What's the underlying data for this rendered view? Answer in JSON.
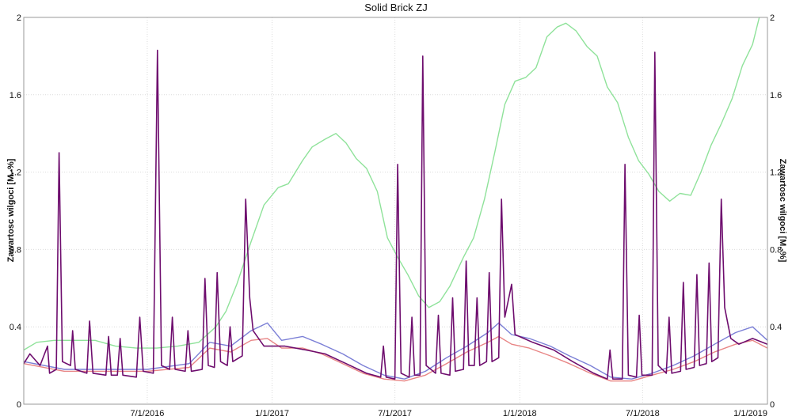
{
  "chart_data": {
    "type": "line",
    "title": "Solid Brick ZJ",
    "ylabel_left": "Zawartosc wilgoci [M.-%]",
    "ylabel_right": "Zawartosc wilgoci [M.-%]",
    "ylim": [
      0,
      2
    ],
    "yticks": [
      0,
      0.4,
      0.8,
      1.2,
      1.6,
      2
    ],
    "yticklabels": [
      "0",
      "0.4",
      "0.8",
      "1.2",
      "1.6",
      "2"
    ],
    "xlim": [
      "2016-01-01",
      "2019-01-01"
    ],
    "xticks": [
      "2016-07-01",
      "2017-01-01",
      "2017-07-01",
      "2018-01-01",
      "2018-07-01",
      "2019-01-01"
    ],
    "xticklabels": [
      "7/1/2016",
      "1/1/2017",
      "7/1/2017",
      "1/1/2018",
      "7/1/2018",
      "1/1/2019"
    ],
    "grid": true,
    "colors": {
      "green": "#8fe29a",
      "blue": "#7b7fd6",
      "red": "#e88585",
      "purple": "#6e0d6e"
    },
    "series": [
      {
        "color": "green",
        "points": [
          [
            "2016-01-01",
            0.28
          ],
          [
            "2016-01-20",
            0.32
          ],
          [
            "2016-02-15",
            0.33
          ],
          [
            "2016-03-15",
            0.33
          ],
          [
            "2016-04-15",
            0.33
          ],
          [
            "2016-05-15",
            0.3
          ],
          [
            "2016-06-15",
            0.29
          ],
          [
            "2016-07-15",
            0.29
          ],
          [
            "2016-08-15",
            0.3
          ],
          [
            "2016-09-15",
            0.32
          ],
          [
            "2016-10-10",
            0.4
          ],
          [
            "2016-10-25",
            0.48
          ],
          [
            "2016-11-10",
            0.62
          ],
          [
            "2016-12-01",
            0.84
          ],
          [
            "2016-12-20",
            1.03
          ],
          [
            "2017-01-10",
            1.12
          ],
          [
            "2017-01-25",
            1.14
          ],
          [
            "2017-02-15",
            1.26
          ],
          [
            "2017-03-01",
            1.33
          ],
          [
            "2017-03-20",
            1.37
          ],
          [
            "2017-04-05",
            1.4
          ],
          [
            "2017-04-20",
            1.35
          ],
          [
            "2017-05-05",
            1.27
          ],
          [
            "2017-05-20",
            1.22
          ],
          [
            "2017-06-05",
            1.1
          ],
          [
            "2017-06-20",
            0.86
          ],
          [
            "2017-07-05",
            0.76
          ],
          [
            "2017-07-20",
            0.67
          ],
          [
            "2017-08-05",
            0.56
          ],
          [
            "2017-08-20",
            0.5
          ],
          [
            "2017-09-05",
            0.53
          ],
          [
            "2017-09-20",
            0.61
          ],
          [
            "2017-10-10",
            0.76
          ],
          [
            "2017-10-25",
            0.86
          ],
          [
            "2017-11-10",
            1.06
          ],
          [
            "2017-11-25",
            1.3
          ],
          [
            "2017-12-10",
            1.55
          ],
          [
            "2017-12-25",
            1.67
          ],
          [
            "2018-01-10",
            1.69
          ],
          [
            "2018-01-25",
            1.74
          ],
          [
            "2018-02-10",
            1.9
          ],
          [
            "2018-02-25",
            1.95
          ],
          [
            "2018-03-10",
            1.97
          ],
          [
            "2018-03-25",
            1.93
          ],
          [
            "2018-04-10",
            1.85
          ],
          [
            "2018-04-25",
            1.8
          ],
          [
            "2018-05-10",
            1.64
          ],
          [
            "2018-05-25",
            1.56
          ],
          [
            "2018-06-10",
            1.38
          ],
          [
            "2018-06-25",
            1.26
          ],
          [
            "2018-07-10",
            1.19
          ],
          [
            "2018-07-25",
            1.1
          ],
          [
            "2018-08-10",
            1.05
          ],
          [
            "2018-08-25",
            1.09
          ],
          [
            "2018-09-10",
            1.08
          ],
          [
            "2018-09-25",
            1.2
          ],
          [
            "2018-10-10",
            1.34
          ],
          [
            "2018-10-25",
            1.45
          ],
          [
            "2018-11-10",
            1.58
          ],
          [
            "2018-11-25",
            1.75
          ],
          [
            "2018-12-10",
            1.86
          ],
          [
            "2018-12-20",
            2.0
          ]
        ]
      },
      {
        "color": "blue",
        "points": [
          [
            "2016-01-01",
            0.22
          ],
          [
            "2016-03-01",
            0.18
          ],
          [
            "2016-05-01",
            0.18
          ],
          [
            "2016-07-01",
            0.18
          ],
          [
            "2016-09-01",
            0.21
          ],
          [
            "2016-10-01",
            0.32
          ],
          [
            "2016-11-01",
            0.3
          ],
          [
            "2016-12-01",
            0.38
          ],
          [
            "2016-12-25",
            0.42
          ],
          [
            "2017-01-15",
            0.33
          ],
          [
            "2017-02-15",
            0.35
          ],
          [
            "2017-03-15",
            0.31
          ],
          [
            "2017-04-15",
            0.26
          ],
          [
            "2017-05-15",
            0.2
          ],
          [
            "2017-06-15",
            0.15
          ],
          [
            "2017-07-15",
            0.13
          ],
          [
            "2017-08-15",
            0.17
          ],
          [
            "2017-09-15",
            0.24
          ],
          [
            "2017-10-15",
            0.3
          ],
          [
            "2017-11-15",
            0.37
          ],
          [
            "2017-12-01",
            0.42
          ],
          [
            "2017-12-20",
            0.36
          ],
          [
            "2018-01-15",
            0.34
          ],
          [
            "2018-02-15",
            0.3
          ],
          [
            "2018-03-15",
            0.25
          ],
          [
            "2018-04-15",
            0.2
          ],
          [
            "2018-05-15",
            0.14
          ],
          [
            "2018-06-15",
            0.13
          ],
          [
            "2018-07-15",
            0.16
          ],
          [
            "2018-08-15",
            0.2
          ],
          [
            "2018-09-15",
            0.25
          ],
          [
            "2018-10-15",
            0.31
          ],
          [
            "2018-11-15",
            0.37
          ],
          [
            "2018-12-10",
            0.4
          ],
          [
            "2019-01-01",
            0.33
          ]
        ]
      },
      {
        "color": "red",
        "points": [
          [
            "2016-01-01",
            0.21
          ],
          [
            "2016-03-01",
            0.17
          ],
          [
            "2016-05-01",
            0.17
          ],
          [
            "2016-07-01",
            0.17
          ],
          [
            "2016-09-01",
            0.19
          ],
          [
            "2016-10-01",
            0.29
          ],
          [
            "2016-11-01",
            0.27
          ],
          [
            "2016-12-01",
            0.33
          ],
          [
            "2016-12-25",
            0.34
          ],
          [
            "2017-01-15",
            0.29
          ],
          [
            "2017-02-15",
            0.29
          ],
          [
            "2017-03-15",
            0.26
          ],
          [
            "2017-04-15",
            0.21
          ],
          [
            "2017-05-15",
            0.16
          ],
          [
            "2017-06-15",
            0.13
          ],
          [
            "2017-07-15",
            0.12
          ],
          [
            "2017-08-15",
            0.15
          ],
          [
            "2017-09-15",
            0.21
          ],
          [
            "2017-10-15",
            0.27
          ],
          [
            "2017-11-15",
            0.32
          ],
          [
            "2017-12-01",
            0.35
          ],
          [
            "2017-12-20",
            0.31
          ],
          [
            "2018-01-15",
            0.29
          ],
          [
            "2018-02-15",
            0.25
          ],
          [
            "2018-03-15",
            0.21
          ],
          [
            "2018-04-15",
            0.16
          ],
          [
            "2018-05-15",
            0.12
          ],
          [
            "2018-06-15",
            0.12
          ],
          [
            "2018-07-15",
            0.15
          ],
          [
            "2018-08-15",
            0.18
          ],
          [
            "2018-09-15",
            0.22
          ],
          [
            "2018-10-15",
            0.27
          ],
          [
            "2018-11-15",
            0.31
          ],
          [
            "2018-12-10",
            0.33
          ],
          [
            "2019-01-01",
            0.29
          ]
        ]
      },
      {
        "color": "purple",
        "points": [
          [
            "2016-01-01",
            0.21
          ],
          [
            "2016-01-10",
            0.26
          ],
          [
            "2016-01-25",
            0.2
          ],
          [
            "2016-02-05",
            0.3
          ],
          [
            "2016-02-08",
            0.16
          ],
          [
            "2016-02-18",
            0.18
          ],
          [
            "2016-02-22",
            1.3
          ],
          [
            "2016-02-27",
            0.22
          ],
          [
            "2016-03-10",
            0.2
          ],
          [
            "2016-03-13",
            0.38
          ],
          [
            "2016-03-17",
            0.18
          ],
          [
            "2016-04-03",
            0.16
          ],
          [
            "2016-04-07",
            0.43
          ],
          [
            "2016-04-12",
            0.16
          ],
          [
            "2016-05-01",
            0.15
          ],
          [
            "2016-05-05",
            0.35
          ],
          [
            "2016-05-09",
            0.15
          ],
          [
            "2016-05-18",
            0.15
          ],
          [
            "2016-05-22",
            0.34
          ],
          [
            "2016-05-26",
            0.15
          ],
          [
            "2016-06-15",
            0.14
          ],
          [
            "2016-06-20",
            0.45
          ],
          [
            "2016-06-25",
            0.17
          ],
          [
            "2016-07-10",
            0.16
          ],
          [
            "2016-07-16",
            1.83
          ],
          [
            "2016-07-22",
            0.2
          ],
          [
            "2016-08-03",
            0.18
          ],
          [
            "2016-08-07",
            0.45
          ],
          [
            "2016-08-11",
            0.18
          ],
          [
            "2016-08-26",
            0.17
          ],
          [
            "2016-08-30",
            0.38
          ],
          [
            "2016-09-04",
            0.17
          ],
          [
            "2016-09-20",
            0.18
          ],
          [
            "2016-09-24",
            0.65
          ],
          [
            "2016-09-29",
            0.2
          ],
          [
            "2016-10-08",
            0.19
          ],
          [
            "2016-10-12",
            0.68
          ],
          [
            "2016-10-17",
            0.22
          ],
          [
            "2016-10-27",
            0.2
          ],
          [
            "2016-10-31",
            0.4
          ],
          [
            "2016-11-04",
            0.22
          ],
          [
            "2016-11-18",
            0.25
          ],
          [
            "2016-11-23",
            1.06
          ],
          [
            "2016-11-29",
            0.55
          ],
          [
            "2016-12-04",
            0.38
          ],
          [
            "2016-12-20",
            0.3
          ],
          [
            "2017-01-20",
            0.3
          ],
          [
            "2017-02-20",
            0.28
          ],
          [
            "2017-03-20",
            0.26
          ],
          [
            "2017-04-20",
            0.21
          ],
          [
            "2017-05-20",
            0.16
          ],
          [
            "2017-06-10",
            0.14
          ],
          [
            "2017-06-14",
            0.3
          ],
          [
            "2017-06-18",
            0.14
          ],
          [
            "2017-07-01",
            0.13
          ],
          [
            "2017-07-05",
            1.24
          ],
          [
            "2017-07-10",
            0.16
          ],
          [
            "2017-07-22",
            0.14
          ],
          [
            "2017-07-26",
            0.45
          ],
          [
            "2017-07-30",
            0.15
          ],
          [
            "2017-08-07",
            0.15
          ],
          [
            "2017-08-11",
            1.8
          ],
          [
            "2017-08-16",
            0.2
          ],
          [
            "2017-08-30",
            0.16
          ],
          [
            "2017-09-03",
            0.46
          ],
          [
            "2017-09-07",
            0.16
          ],
          [
            "2017-09-20",
            0.15
          ],
          [
            "2017-09-24",
            0.55
          ],
          [
            "2017-09-28",
            0.17
          ],
          [
            "2017-10-10",
            0.18
          ],
          [
            "2017-10-14",
            0.74
          ],
          [
            "2017-10-18",
            0.2
          ],
          [
            "2017-10-26",
            0.2
          ],
          [
            "2017-10-30",
            0.55
          ],
          [
            "2017-11-03",
            0.2
          ],
          [
            "2017-11-13",
            0.22
          ],
          [
            "2017-11-17",
            0.68
          ],
          [
            "2017-11-21",
            0.22
          ],
          [
            "2017-12-01",
            0.24
          ],
          [
            "2017-12-05",
            1.06
          ],
          [
            "2017-12-10",
            0.45
          ],
          [
            "2017-12-20",
            0.62
          ],
          [
            "2017-12-25",
            0.36
          ],
          [
            "2018-01-20",
            0.32
          ],
          [
            "2018-02-20",
            0.28
          ],
          [
            "2018-03-20",
            0.22
          ],
          [
            "2018-04-20",
            0.16
          ],
          [
            "2018-05-10",
            0.13
          ],
          [
            "2018-05-14",
            0.28
          ],
          [
            "2018-05-18",
            0.13
          ],
          [
            "2018-06-01",
            0.13
          ],
          [
            "2018-06-05",
            1.24
          ],
          [
            "2018-06-10",
            0.15
          ],
          [
            "2018-06-22",
            0.14
          ],
          [
            "2018-06-26",
            0.46
          ],
          [
            "2018-06-30",
            0.15
          ],
          [
            "2018-07-15",
            0.15
          ],
          [
            "2018-07-19",
            1.82
          ],
          [
            "2018-07-24",
            0.2
          ],
          [
            "2018-08-05",
            0.16
          ],
          [
            "2018-08-09",
            0.45
          ],
          [
            "2018-08-13",
            0.16
          ],
          [
            "2018-08-26",
            0.17
          ],
          [
            "2018-08-30",
            0.63
          ],
          [
            "2018-09-03",
            0.18
          ],
          [
            "2018-09-15",
            0.19
          ],
          [
            "2018-09-19",
            0.67
          ],
          [
            "2018-09-23",
            0.2
          ],
          [
            "2018-10-03",
            0.21
          ],
          [
            "2018-10-07",
            0.73
          ],
          [
            "2018-10-11",
            0.22
          ],
          [
            "2018-10-20",
            0.24
          ],
          [
            "2018-10-25",
            1.06
          ],
          [
            "2018-10-30",
            0.5
          ],
          [
            "2018-11-08",
            0.34
          ],
          [
            "2018-11-20",
            0.31
          ],
          [
            "2018-12-10",
            0.34
          ],
          [
            "2019-01-01",
            0.31
          ]
        ]
      }
    ]
  }
}
